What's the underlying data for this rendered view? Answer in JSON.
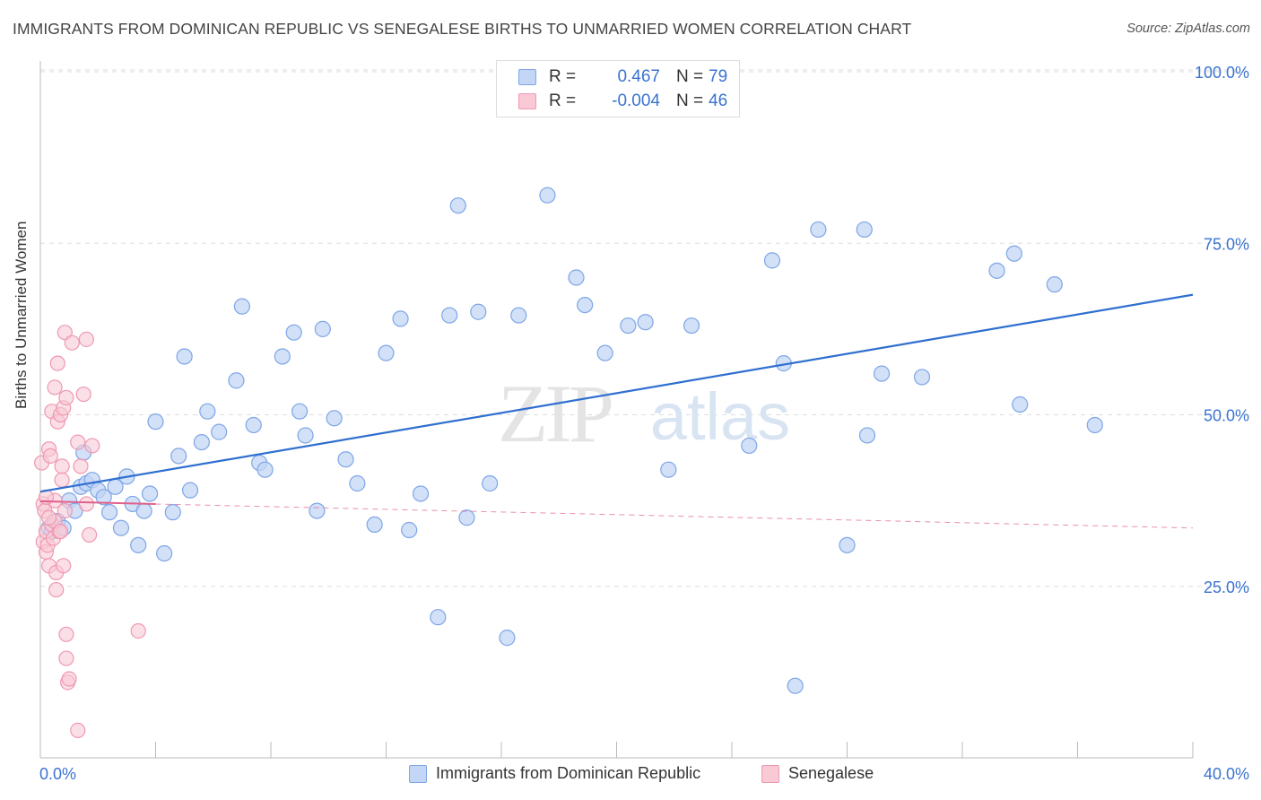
{
  "header": {
    "title": "IMMIGRANTS FROM DOMINICAN REPUBLIC VS SENEGALESE BIRTHS TO UNMARRIED WOMEN CORRELATION CHART",
    "source": "Source: ZipAtlas.com"
  },
  "legend_top": {
    "rows": [
      {
        "r_label": "R =",
        "r_value": "0.467",
        "n_label": "N =",
        "n_value": "79"
      },
      {
        "r_label": "R =",
        "r_value": "-0.004",
        "n_label": "N =",
        "n_value": "46"
      }
    ]
  },
  "legend_bottom": {
    "items": [
      "Immigrants from Dominican Republic",
      "Senegalese"
    ]
  },
  "watermark": {
    "part1": "ZIP",
    "part2": "atlas"
  },
  "colors": {
    "blue_fill": "#c3d6f6",
    "blue_stroke": "#7ea6e6",
    "blue_line": "#2f6fd0",
    "pink_fill": "#f9cad6",
    "pink_stroke": "#ef98b2",
    "pink_line": "#e0608a",
    "grid": "#dddddd",
    "axis_text": "#3a73d0"
  },
  "chart_data": {
    "type": "scatter",
    "title": "IMMIGRANTS FROM DOMINICAN REPUBLIC VS SENEGALESE BIRTHS TO UNMARRIED WOMEN CORRELATION CHART",
    "xlabel": "",
    "ylabel": "Births to Unmarried Women",
    "xlim": [
      0,
      40
    ],
    "ylim": [
      0,
      100
    ],
    "x_tick_labels": [
      "0.0%",
      "40.0%"
    ],
    "y_tick_labels": [
      "25.0%",
      "50.0%",
      "75.0%",
      "100.0%"
    ],
    "y_ticks": [
      25,
      50,
      75,
      100
    ],
    "grid": true,
    "legend_position": "top-center",
    "series": [
      {
        "name": "Immigrants from Dominican Republic",
        "color": "#7ea6e6",
        "points": [
          [
            0.3,
            33.5
          ],
          [
            0.4,
            33.0
          ],
          [
            0.6,
            34.5
          ],
          [
            0.8,
            33.5
          ],
          [
            1.0,
            37.5
          ],
          [
            1.2,
            36.0
          ],
          [
            1.4,
            39.5
          ],
          [
            1.5,
            44.5
          ],
          [
            1.6,
            40.0
          ],
          [
            1.8,
            40.5
          ],
          [
            2.0,
            39.0
          ],
          [
            2.2,
            38.0
          ],
          [
            2.4,
            35.8
          ],
          [
            2.6,
            39.5
          ],
          [
            2.8,
            33.5
          ],
          [
            3.0,
            41.0
          ],
          [
            3.2,
            37.0
          ],
          [
            3.4,
            31.0
          ],
          [
            3.6,
            36.0
          ],
          [
            3.8,
            38.5
          ],
          [
            4.0,
            49.0
          ],
          [
            4.3,
            29.8
          ],
          [
            4.6,
            35.8
          ],
          [
            4.8,
            44.0
          ],
          [
            5.0,
            58.5
          ],
          [
            5.2,
            39.0
          ],
          [
            5.6,
            46.0
          ],
          [
            5.8,
            50.5
          ],
          [
            6.2,
            47.5
          ],
          [
            6.8,
            55.0
          ],
          [
            7.0,
            65.8
          ],
          [
            7.4,
            48.5
          ],
          [
            7.6,
            43.0
          ],
          [
            7.8,
            42.0
          ],
          [
            8.4,
            58.5
          ],
          [
            8.8,
            62.0
          ],
          [
            9.0,
            50.5
          ],
          [
            9.2,
            47.0
          ],
          [
            9.6,
            36.0
          ],
          [
            9.8,
            62.5
          ],
          [
            10.2,
            49.5
          ],
          [
            10.6,
            43.5
          ],
          [
            11.0,
            40.0
          ],
          [
            11.6,
            34.0
          ],
          [
            12.0,
            59.0
          ],
          [
            12.5,
            64.0
          ],
          [
            12.8,
            33.2
          ],
          [
            13.2,
            38.5
          ],
          [
            13.8,
            20.5
          ],
          [
            14.2,
            64.5
          ],
          [
            14.5,
            80.5
          ],
          [
            14.8,
            35.0
          ],
          [
            15.2,
            65.0
          ],
          [
            15.6,
            40.0
          ],
          [
            16.2,
            17.5
          ],
          [
            16.6,
            64.5
          ],
          [
            17.6,
            82.0
          ],
          [
            18.6,
            70.0
          ],
          [
            18.9,
            66.0
          ],
          [
            19.6,
            59.0
          ],
          [
            20.4,
            63.0
          ],
          [
            21.0,
            63.5
          ],
          [
            21.8,
            42.0
          ],
          [
            22.6,
            63.0
          ],
          [
            24.6,
            45.5
          ],
          [
            25.4,
            72.5
          ],
          [
            25.8,
            57.5
          ],
          [
            26.2,
            10.5
          ],
          [
            27.0,
            77.0
          ],
          [
            28.0,
            31.0
          ],
          [
            28.6,
            77.0
          ],
          [
            28.7,
            47.0
          ],
          [
            29.2,
            56.0
          ],
          [
            30.6,
            55.5
          ],
          [
            33.2,
            71.0
          ],
          [
            33.8,
            73.5
          ],
          [
            34.0,
            51.5
          ],
          [
            35.2,
            69.0
          ],
          [
            36.6,
            48.5
          ]
        ],
        "trend": [
          [
            0,
            38.8
          ],
          [
            40,
            67.5
          ]
        ]
      },
      {
        "name": "Senegalese",
        "color": "#ef98b2",
        "points": [
          [
            0.05,
            43.0
          ],
          [
            0.1,
            37.0
          ],
          [
            0.1,
            31.5
          ],
          [
            0.15,
            36.0
          ],
          [
            0.2,
            33.0
          ],
          [
            0.2,
            30.0
          ],
          [
            0.25,
            31.0
          ],
          [
            0.3,
            28.0
          ],
          [
            0.3,
            45.0
          ],
          [
            0.35,
            44.0
          ],
          [
            0.4,
            34.0
          ],
          [
            0.4,
            50.5
          ],
          [
            0.45,
            32.0
          ],
          [
            0.5,
            54.0
          ],
          [
            0.5,
            37.5
          ],
          [
            0.55,
            27.0
          ],
          [
            0.55,
            24.5
          ],
          [
            0.6,
            57.5
          ],
          [
            0.6,
            49.0
          ],
          [
            0.65,
            33.0
          ],
          [
            0.7,
            50.0
          ],
          [
            0.75,
            42.5
          ],
          [
            0.75,
            40.5
          ],
          [
            0.8,
            51.0
          ],
          [
            0.8,
            28.0
          ],
          [
            0.85,
            36.0
          ],
          [
            0.85,
            62.0
          ],
          [
            0.9,
            52.5
          ],
          [
            0.9,
            18.0
          ],
          [
            0.9,
            14.5
          ],
          [
            0.95,
            11.0
          ],
          [
            1.0,
            11.5
          ],
          [
            1.1,
            60.5
          ],
          [
            1.3,
            4.0
          ],
          [
            1.3,
            46.0
          ],
          [
            1.4,
            42.5
          ],
          [
            1.5,
            53.0
          ],
          [
            1.6,
            37.0
          ],
          [
            1.6,
            61.0
          ],
          [
            1.7,
            32.5
          ],
          [
            1.8,
            45.5
          ],
          [
            3.4,
            18.5
          ],
          [
            0.5,
            34.5
          ],
          [
            0.3,
            35.0
          ],
          [
            0.7,
            33.0
          ],
          [
            0.2,
            38.0
          ]
        ],
        "trend": [
          [
            0,
            37.4
          ],
          [
            4.0,
            37.0
          ]
        ],
        "trend_dashed": [
          [
            4.0,
            37.0
          ],
          [
            40,
            33.5
          ]
        ]
      }
    ]
  }
}
